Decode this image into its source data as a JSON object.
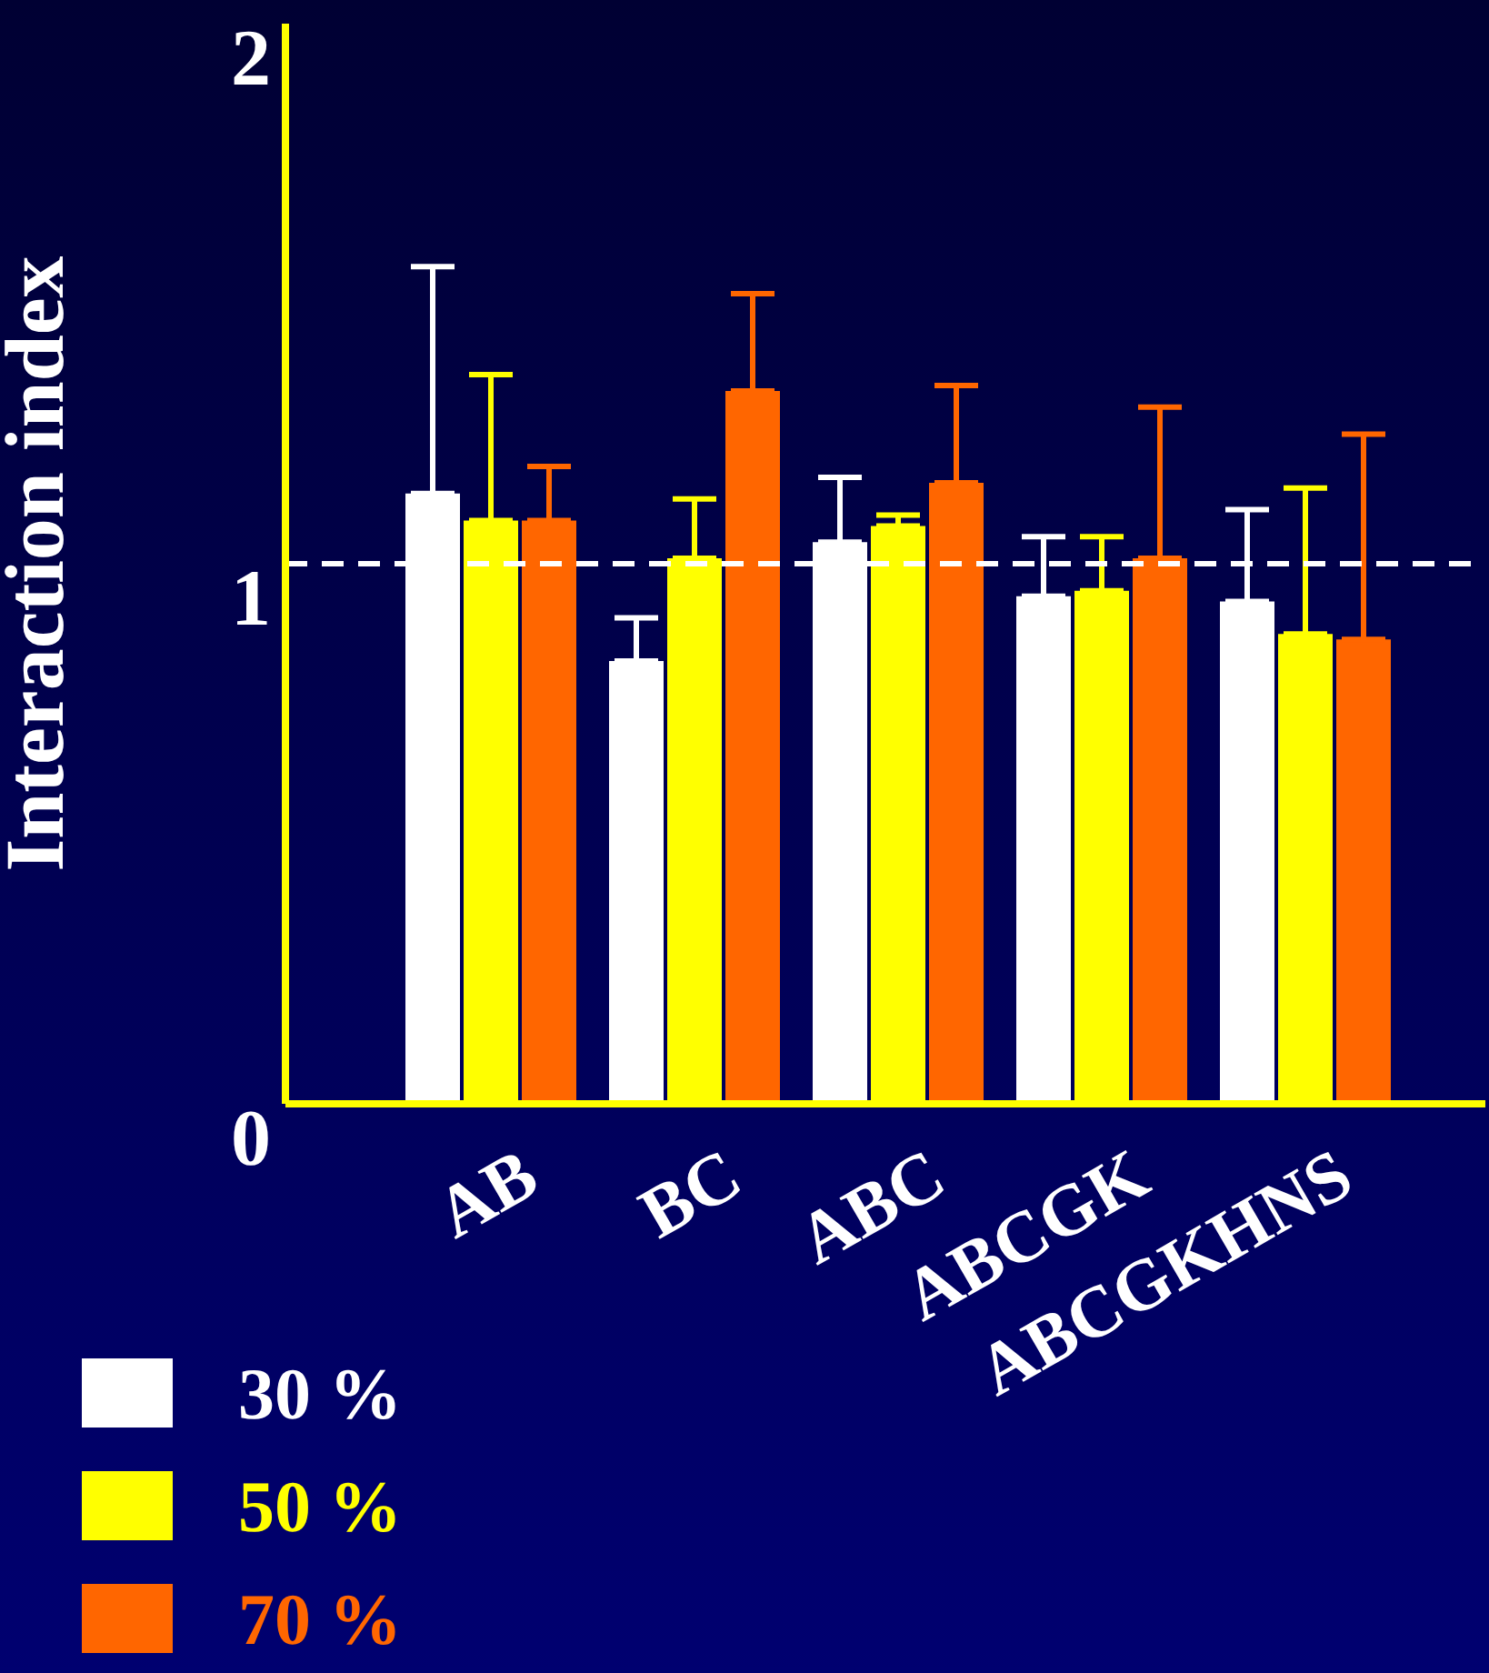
{
  "chart_data": {
    "type": "bar",
    "ylabel": "Interaction index",
    "categories": [
      "AB",
      "BC",
      "ABC",
      "ABCGK",
      "ABCGKHNS"
    ],
    "series": [
      {
        "name": "30 %",
        "color": "#ffffff",
        "values": [
          1.13,
          0.82,
          1.04,
          0.94,
          0.93
        ],
        "errors": [
          [
            1.13,
            1.55
          ],
          [
            0.82,
            0.9
          ],
          [
            1.04,
            1.16
          ],
          [
            0.94,
            1.05
          ],
          [
            0.93,
            1.1
          ]
        ]
      },
      {
        "name": "50 %",
        "color": "#ffff00",
        "values": [
          1.08,
          1.01,
          1.07,
          0.95,
          0.87
        ],
        "errors": [
          [
            1.08,
            1.35
          ],
          [
            1.01,
            1.12
          ],
          [
            1.07,
            1.09
          ],
          [
            0.95,
            1.05
          ],
          [
            0.87,
            1.14
          ]
        ]
      },
      {
        "name": "70 %",
        "color": "#ff6600",
        "values": [
          1.08,
          1.32,
          1.15,
          1.01,
          0.86
        ],
        "errors": [
          [
            1.08,
            1.18
          ],
          [
            1.32,
            1.5
          ],
          [
            1.15,
            1.33
          ],
          [
            1.01,
            1.29
          ],
          [
            0.86,
            1.24
          ]
        ]
      }
    ],
    "ylim": [
      0,
      2
    ],
    "yticks": [
      0,
      1,
      2
    ],
    "grid": false,
    "legend": "bottom left",
    "ref_lines": [
      {
        "axis": "y",
        "value": 1,
        "color": "#ffffff",
        "line_style": "dashed"
      }
    ]
  }
}
